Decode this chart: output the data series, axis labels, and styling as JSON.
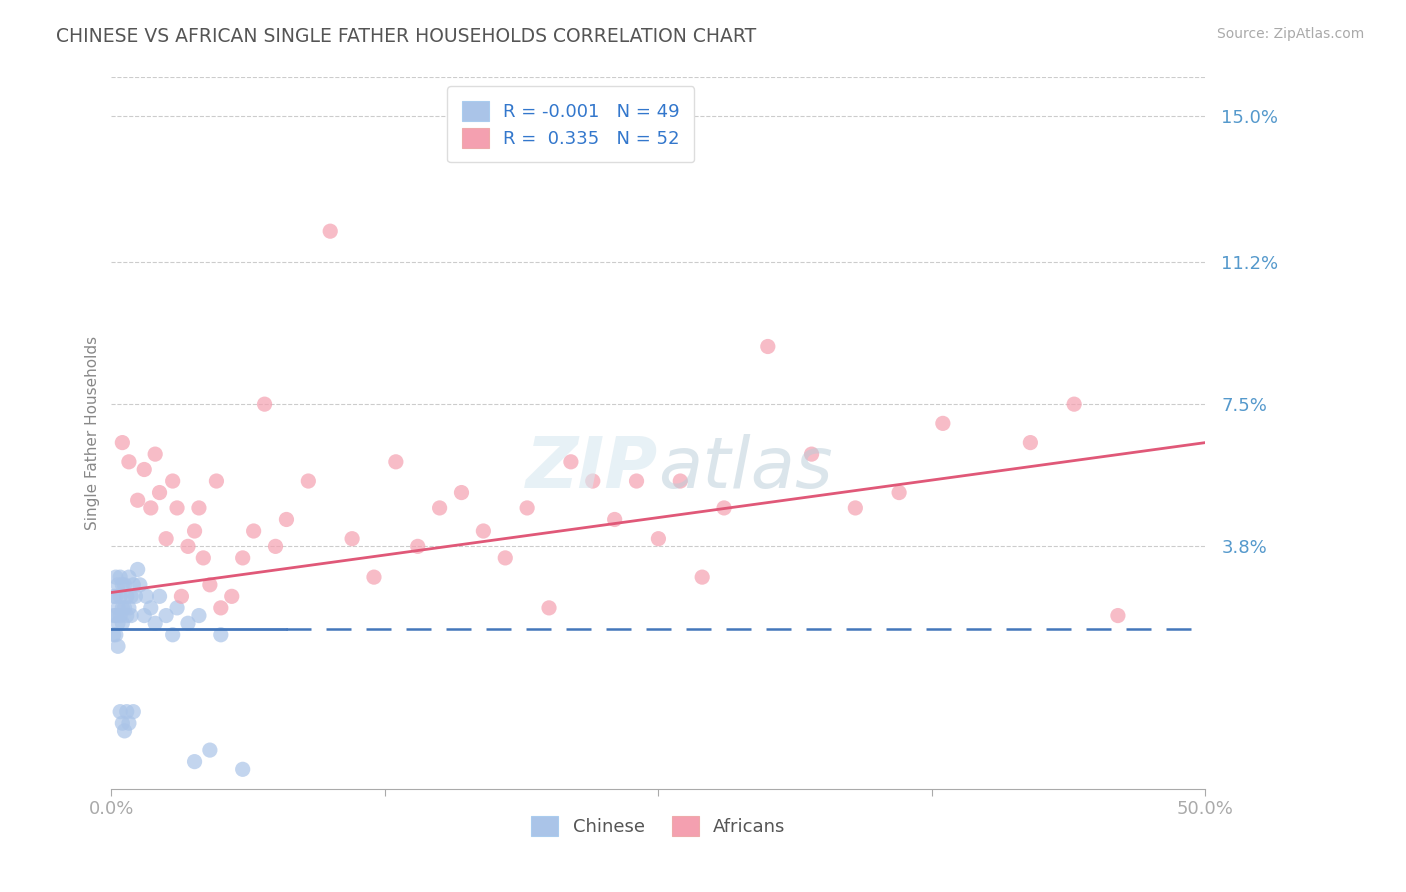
{
  "title": "CHINESE VS AFRICAN SINGLE FATHER HOUSEHOLDS CORRELATION CHART",
  "source": "Source: ZipAtlas.com",
  "ylabel": "Single Father Households",
  "xlim": [
    0.0,
    0.5
  ],
  "ylim": [
    -0.025,
    0.16
  ],
  "yticks": [
    0.038,
    0.075,
    0.112,
    0.15
  ],
  "ytick_labels": [
    "3.8%",
    "7.5%",
    "11.2%",
    "15.0%"
  ],
  "xticks": [
    0.0,
    0.125,
    0.25,
    0.375,
    0.5
  ],
  "xtick_labels": [
    "0.0%",
    "",
    "",
    "",
    "50.0%"
  ],
  "chinese_R": -0.001,
  "chinese_N": 49,
  "african_R": 0.335,
  "african_N": 52,
  "chinese_color": "#aac4e8",
  "african_color": "#f4a0b0",
  "chinese_line_color": "#4477bb",
  "african_line_color": "#e05878",
  "background_color": "#ffffff",
  "grid_color": "#cccccc",
  "title_color": "#555555",
  "label_color": "#5599cc",
  "chinese_x": [
    0.001,
    0.001,
    0.001,
    0.002,
    0.002,
    0.002,
    0.002,
    0.003,
    0.003,
    0.003,
    0.003,
    0.004,
    0.004,
    0.004,
    0.004,
    0.005,
    0.005,
    0.005,
    0.005,
    0.006,
    0.006,
    0.006,
    0.007,
    0.007,
    0.007,
    0.008,
    0.008,
    0.008,
    0.009,
    0.009,
    0.01,
    0.01,
    0.011,
    0.012,
    0.013,
    0.015,
    0.016,
    0.018,
    0.02,
    0.022,
    0.025,
    0.028,
    0.03,
    0.035,
    0.038,
    0.04,
    0.045,
    0.05,
    0.06
  ],
  "chinese_y": [
    0.025,
    0.02,
    0.015,
    0.03,
    0.025,
    0.02,
    0.015,
    0.028,
    0.022,
    0.018,
    0.012,
    0.03,
    0.025,
    0.02,
    -0.005,
    0.028,
    0.022,
    0.018,
    -0.008,
    0.028,
    0.022,
    -0.01,
    0.025,
    0.02,
    -0.005,
    0.03,
    0.022,
    -0.008,
    0.025,
    0.02,
    0.028,
    -0.005,
    0.025,
    0.032,
    0.028,
    0.02,
    0.025,
    0.022,
    0.018,
    0.025,
    0.02,
    0.015,
    0.022,
    0.018,
    -0.018,
    0.02,
    -0.015,
    0.015,
    -0.02
  ],
  "african_x": [
    0.005,
    0.008,
    0.012,
    0.015,
    0.018,
    0.02,
    0.022,
    0.025,
    0.028,
    0.03,
    0.032,
    0.035,
    0.038,
    0.04,
    0.042,
    0.045,
    0.048,
    0.05,
    0.055,
    0.06,
    0.065,
    0.07,
    0.075,
    0.08,
    0.09,
    0.1,
    0.11,
    0.12,
    0.13,
    0.14,
    0.15,
    0.16,
    0.17,
    0.18,
    0.19,
    0.2,
    0.21,
    0.22,
    0.23,
    0.24,
    0.25,
    0.26,
    0.27,
    0.28,
    0.3,
    0.32,
    0.34,
    0.36,
    0.38,
    0.42,
    0.44,
    0.46
  ],
  "african_y": [
    0.065,
    0.06,
    0.05,
    0.058,
    0.048,
    0.062,
    0.052,
    0.04,
    0.055,
    0.048,
    0.025,
    0.038,
    0.042,
    0.048,
    0.035,
    0.028,
    0.055,
    0.022,
    0.025,
    0.035,
    0.042,
    0.075,
    0.038,
    0.045,
    0.055,
    0.12,
    0.04,
    0.03,
    0.06,
    0.038,
    0.048,
    0.052,
    0.042,
    0.035,
    0.048,
    0.022,
    0.06,
    0.055,
    0.045,
    0.055,
    0.04,
    0.055,
    0.03,
    0.048,
    0.09,
    0.062,
    0.048,
    0.052,
    0.07,
    0.065,
    0.075,
    0.02
  ],
  "chinese_trend_y": [
    0.025,
    0.025
  ],
  "african_trend_start_y": 0.026,
  "african_trend_end_y": 0.065
}
